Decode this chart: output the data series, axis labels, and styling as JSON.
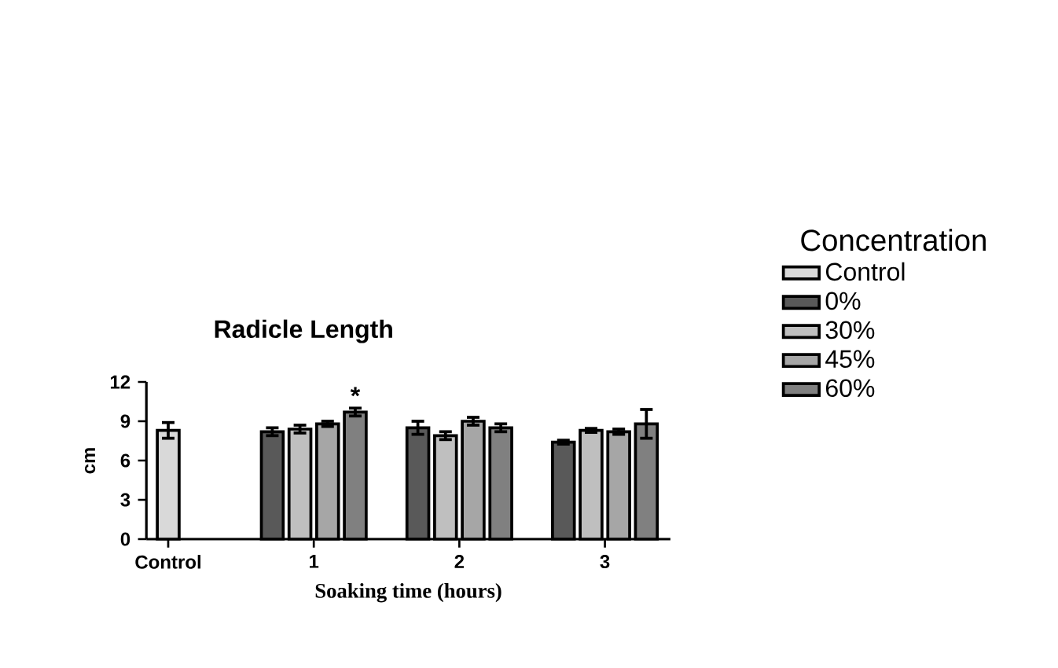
{
  "chart_data": {
    "type": "bar",
    "title": "Radicle Length",
    "xlabel": "Soaking time (hours)",
    "ylabel": "cm",
    "legend_title": "Concentration",
    "categories": [
      "Control",
      "1",
      "2",
      "3"
    ],
    "series": [
      {
        "name": "Control",
        "color": "#d9d9d9",
        "values": [
          8.3,
          null,
          null,
          null
        ],
        "errors": [
          0.6,
          null,
          null,
          null
        ]
      },
      {
        "name": "0%",
        "color": "#595959",
        "values": [
          null,
          8.2,
          8.5,
          7.4
        ],
        "errors": [
          null,
          0.3,
          0.5,
          0.15
        ]
      },
      {
        "name": "30%",
        "color": "#bfbfbf",
        "values": [
          null,
          8.4,
          7.9,
          8.3
        ],
        "errors": [
          null,
          0.3,
          0.3,
          0.15
        ]
      },
      {
        "name": "45%",
        "color": "#a6a6a6",
        "values": [
          null,
          8.8,
          9.0,
          8.2
        ],
        "errors": [
          null,
          0.2,
          0.3,
          0.2
        ]
      },
      {
        "name": "60%",
        "color": "#808080",
        "values": [
          null,
          9.7,
          8.5,
          8.8
        ],
        "errors": [
          null,
          0.3,
          0.3,
          1.1
        ],
        "value_labels": [
          null,
          "*",
          null,
          null
        ]
      }
    ],
    "ylim": [
      0,
      12
    ],
    "yticks": [
      0,
      3,
      6,
      9,
      12
    ],
    "legend": "right"
  }
}
